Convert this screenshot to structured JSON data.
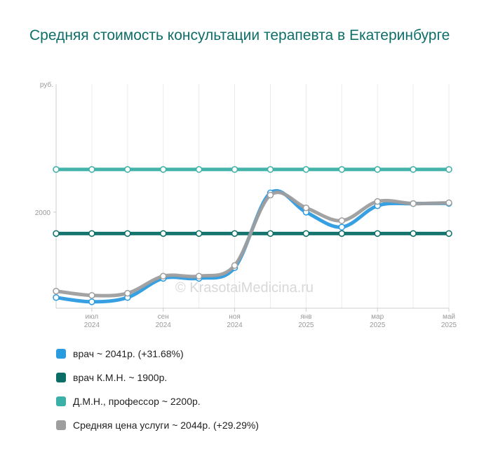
{
  "colors": {
    "doctor": "#2b9be0",
    "kmn": "#0a6e66",
    "dmn": "#3ab0a6",
    "avg": "#9e9e9e"
  },
  "chart_data": {
    "type": "line",
    "title": "Средняя стоимость консультации терапевта в Екатеринбурге",
    "ylabel": "руб.",
    "ylim": [
      1550,
      2600
    ],
    "yticks": [
      {
        "value": 2000,
        "label": "2000"
      }
    ],
    "x_ticks": [
      {
        "index": 1,
        "month": "июл",
        "year": "2024"
      },
      {
        "index": 3,
        "month": "сен",
        "year": "2024"
      },
      {
        "index": 5,
        "month": "ноя",
        "year": "2024"
      },
      {
        "index": 7,
        "month": "янв",
        "year": "2025"
      },
      {
        "index": 9,
        "month": "мар",
        "year": "2025"
      },
      {
        "index": 11,
        "month": "май",
        "year": "2025"
      }
    ],
    "watermark": "© KrasotaiMedicina.ru",
    "grid": true,
    "legend_position": "bottom",
    "series": [
      {
        "name": "врач К.М.Н.",
        "color_key": "kmn",
        "values": [
          1900,
          1900,
          1900,
          1900,
          1900,
          1900,
          1900,
          1900,
          1900,
          1900,
          1900,
          1900
        ]
      },
      {
        "name": "Д.М.Н., профессор",
        "color_key": "dmn",
        "values": [
          2200,
          2200,
          2200,
          2200,
          2200,
          2200,
          2200,
          2200,
          2200,
          2200,
          2200,
          2200
        ]
      },
      {
        "name": "врач",
        "color_key": "doctor",
        "values": [
          1600,
          1580,
          1600,
          1690,
          1690,
          1740,
          2090,
          2000,
          1930,
          2030,
          2040,
          2041
        ]
      },
      {
        "name": "Средняя цена услуги",
        "color_key": "avg",
        "values": [
          1630,
          1610,
          1620,
          1700,
          1700,
          1750,
          2080,
          2020,
          1960,
          2050,
          2040,
          2044
        ]
      }
    ]
  },
  "legend": [
    {
      "label": "врач ~ 2041р. (+31.68%)",
      "color_key": "doctor"
    },
    {
      "label": "врач К.М.Н. ~ 1900р.",
      "color_key": "kmn"
    },
    {
      "label": "Д.М.Н., профессор ~ 2200р.",
      "color_key": "dmn"
    },
    {
      "label": "Средняя цена услуги ~ 2044р. (+29.29%)",
      "color_key": "avg"
    }
  ]
}
